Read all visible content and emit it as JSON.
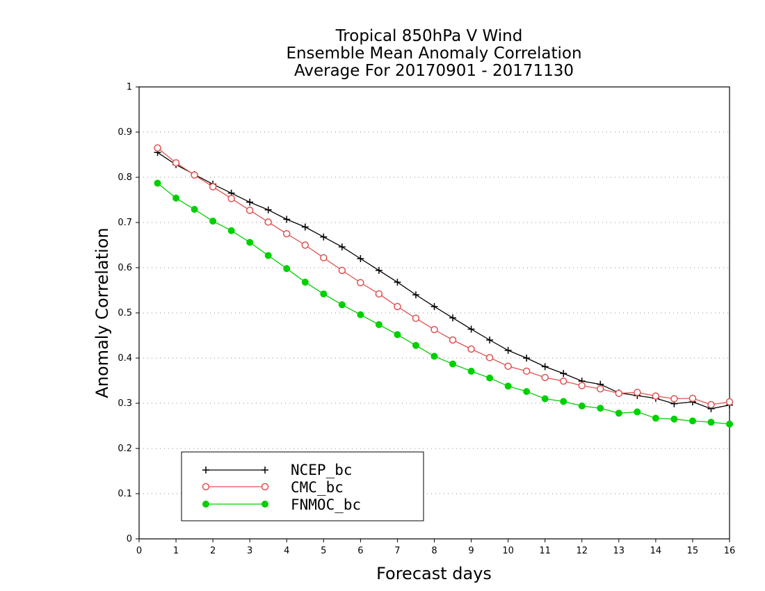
{
  "chart_data": {
    "type": "line",
    "title_lines": [
      "Tropical 850hPa V Wind",
      "Ensemble Mean Anomaly Correlation",
      "Average For 20170901 - 20171130"
    ],
    "xlabel": "Forecast days",
    "ylabel": "Anomaly Correlation",
    "xlim": [
      0,
      16
    ],
    "ylim": [
      0,
      1
    ],
    "x_ticks": [
      "0",
      "1",
      "2",
      "3",
      "4",
      "5",
      "6",
      "7",
      "8",
      "9",
      "10",
      "11",
      "12",
      "13",
      "14",
      "15",
      "16"
    ],
    "y_ticks": [
      "0",
      "0.1",
      "0.2",
      "0.3",
      "0.4",
      "0.5",
      "0.6",
      "0.7",
      "0.8",
      "0.9",
      "1"
    ],
    "grid": "horizontal dotted",
    "legend_position": "bottom-left",
    "x": [
      0.5,
      1,
      1.5,
      2,
      2.5,
      3,
      3.5,
      4,
      4.5,
      5,
      5.5,
      6,
      6.5,
      7,
      7.5,
      8,
      8.5,
      9,
      9.5,
      10,
      10.5,
      11,
      11.5,
      12,
      12.5,
      13,
      13.5,
      14,
      14.5,
      15,
      15.5,
      16
    ],
    "series": [
      {
        "name": "NCEP_bc",
        "color": "#000000",
        "marker": "plus",
        "values": [
          0.855,
          0.828,
          0.806,
          0.785,
          0.765,
          0.745,
          0.728,
          0.707,
          0.69,
          0.668,
          0.646,
          0.62,
          0.594,
          0.568,
          0.54,
          0.514,
          0.489,
          0.464,
          0.44,
          0.417,
          0.4,
          0.381,
          0.366,
          0.349,
          0.342,
          0.323,
          0.317,
          0.311,
          0.299,
          0.303,
          0.288,
          0.296
        ]
      },
      {
        "name": "CMC_bc",
        "color": "#e05050",
        "marker": "open-circle",
        "values": [
          0.865,
          0.832,
          0.805,
          0.779,
          0.753,
          0.727,
          0.701,
          0.675,
          0.65,
          0.622,
          0.594,
          0.567,
          0.542,
          0.514,
          0.488,
          0.463,
          0.44,
          0.42,
          0.401,
          0.382,
          0.371,
          0.357,
          0.349,
          0.339,
          0.332,
          0.322,
          0.324,
          0.316,
          0.31,
          0.311,
          0.297,
          0.303
        ]
      },
      {
        "name": "FNMOC_bc",
        "color": "#00d000",
        "marker": "filled-circle",
        "values": [
          0.787,
          0.754,
          0.729,
          0.703,
          0.682,
          0.656,
          0.627,
          0.598,
          0.568,
          0.542,
          0.518,
          0.496,
          0.474,
          0.452,
          0.428,
          0.404,
          0.387,
          0.371,
          0.356,
          0.338,
          0.326,
          0.31,
          0.304,
          0.294,
          0.289,
          0.278,
          0.281,
          0.267,
          0.265,
          0.261,
          0.258,
          0.254
        ]
      }
    ]
  }
}
